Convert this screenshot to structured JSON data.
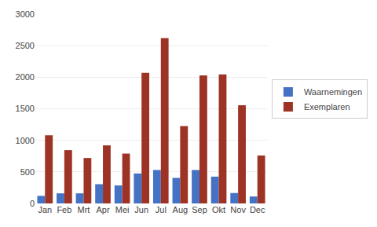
{
  "chart_data": {
    "type": "bar",
    "categories": [
      "Jan",
      "Feb",
      "Mrt",
      "Apr",
      "Mei",
      "Jun",
      "Jul",
      "Aug",
      "Sep",
      "Okt",
      "Nov",
      "Dec"
    ],
    "series": [
      {
        "name": "Waarnemingen",
        "color": "#4472C4",
        "values": [
          120,
          160,
          160,
          305,
          285,
          475,
          530,
          405,
          530,
          425,
          165,
          110
        ]
      },
      {
        "name": "Exemplaren",
        "color": "#9C3325",
        "values": [
          1080,
          845,
          720,
          920,
          790,
          2070,
          2620,
          1225,
          2030,
          2045,
          1555,
          760
        ]
      }
    ],
    "ylim": [
      0,
      3000
    ],
    "yticks": [
      0,
      500,
      1000,
      1500,
      2000,
      2500,
      3000
    ],
    "grid": true,
    "legend": "right"
  }
}
